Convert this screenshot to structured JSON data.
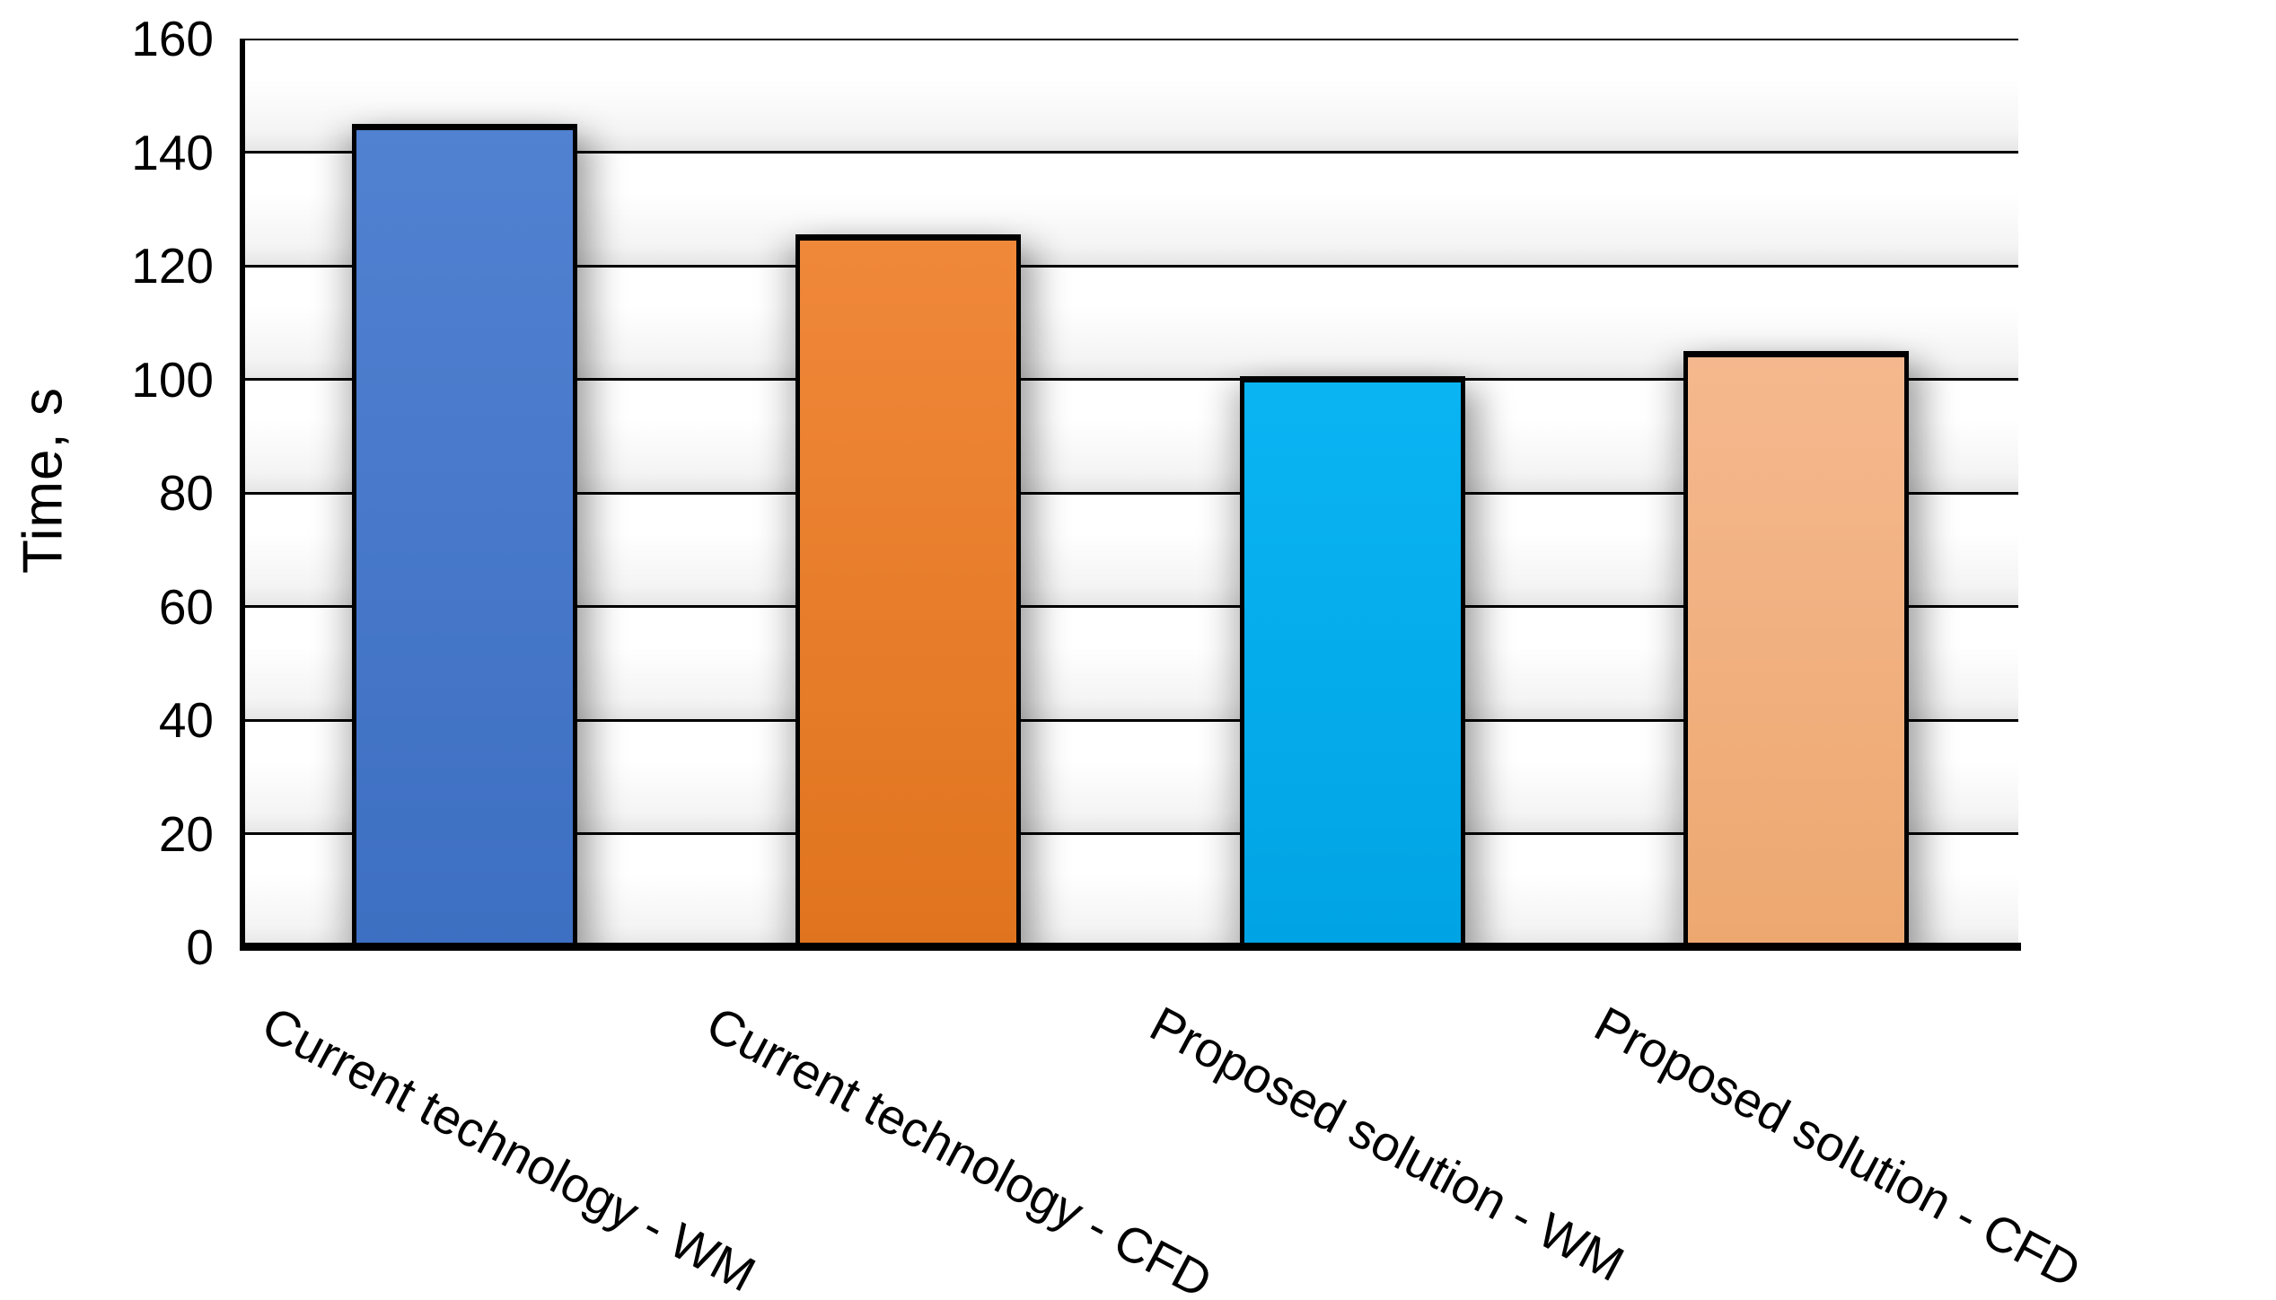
{
  "chart_data": {
    "type": "bar",
    "title": "",
    "categories": [
      "Current technology - WM",
      "Current technology - CFD",
      "Proposed solution - WM",
      "Proposed solution - CFD"
    ],
    "values": [
      145,
      125.5,
      100.5,
      105
    ],
    "xlabel": "",
    "ylabel": "Time, s",
    "ylim": [
      0,
      160
    ],
    "yticks": [
      0,
      20,
      40,
      60,
      80,
      100,
      120,
      140,
      160
    ],
    "grid": "horizontal gridlines every 20, no right/top frame except top gridline",
    "legend_position": "none",
    "bar_border_color": "#000000",
    "label_rotation_deg": 28,
    "bar_colors": [
      {
        "name": "blue",
        "top": "#5181D1",
        "bottom": "#3D6FC2"
      },
      {
        "name": "orange",
        "top": "#F0883A",
        "bottom": "#E0741E"
      },
      {
        "name": "cyan",
        "top": "#0AB4F3",
        "bottom": "#00A4E4"
      },
      {
        "name": "tan",
        "top": "#F5B88E",
        "bottom": "#EDA870"
      }
    ]
  }
}
